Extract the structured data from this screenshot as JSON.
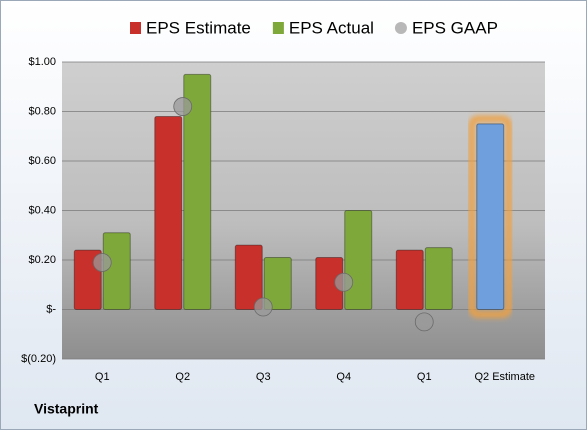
{
  "chart_data": {
    "type": "bar",
    "categories": [
      "Q1",
      "Q2",
      "Q3",
      "Q4",
      "Q1",
      "Q2 Estimate"
    ],
    "series": [
      {
        "name": "EPS Estimate",
        "color": "#c8302b",
        "colors": [
          "#c8302b",
          "#c8302b",
          "#c8302b",
          "#c8302b",
          "#c8302b",
          "#6f9fdc"
        ],
        "values": [
          0.24,
          0.78,
          0.26,
          0.21,
          0.24,
          0.75
        ]
      },
      {
        "name": "EPS Actual",
        "color": "#7fa83a",
        "values": [
          0.31,
          0.95,
          0.21,
          0.4,
          0.25,
          null
        ]
      },
      {
        "name": "EPS GAAP",
        "color": "#9a9a9a",
        "mark": "circle",
        "values": [
          0.19,
          0.82,
          0.01,
          0.11,
          -0.05,
          null
        ]
      }
    ],
    "ylim": [
      -0.2,
      1.0
    ],
    "yticks": [
      {
        "value": -0.2,
        "label": "$(0.20)"
      },
      {
        "value": 0,
        "label": "$-"
      },
      {
        "value": 0.2,
        "label": "$0.20"
      },
      {
        "value": 0.4,
        "label": "$0.40"
      },
      {
        "value": 0.6,
        "label": "$0.60"
      },
      {
        "value": 0.8,
        "label": "$0.80"
      },
      {
        "value": 1.0,
        "label": "$1.00"
      }
    ],
    "grid": true,
    "legend": "top",
    "footer": "Vistaprint"
  }
}
